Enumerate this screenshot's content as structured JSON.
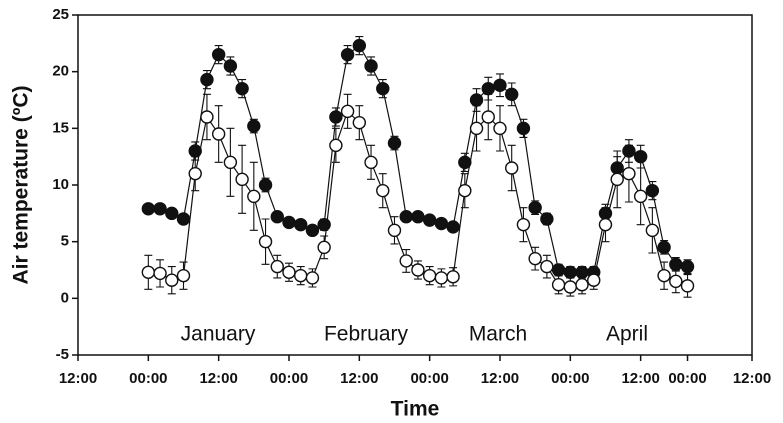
{
  "chart_data": {
    "type": "scatter",
    "y_label": "Air temperature (ºC)",
    "x_label": "Time",
    "annotations": [
      "January",
      "February",
      "March",
      "April"
    ],
    "xlim": [
      -12,
      103
    ],
    "ylim": [
      -5,
      25
    ],
    "xticks": [
      {
        "value": -12,
        "label": "12:00"
      },
      {
        "value": 0,
        "label": "00:00"
      },
      {
        "value": 12,
        "label": "12:00"
      },
      {
        "value": 24,
        "label": "00:00"
      },
      {
        "value": 36,
        "label": "12:00"
      },
      {
        "value": 48,
        "label": "00:00"
      },
      {
        "value": 60,
        "label": "12:00"
      },
      {
        "value": 72,
        "label": "00:00"
      },
      {
        "value": 84,
        "label": "12:00"
      },
      {
        "value": 92,
        "label": "00:00"
      },
      {
        "value": 103,
        "label": "12:00"
      }
    ],
    "yticks": [
      -5,
      0,
      5,
      10,
      15,
      20,
      25
    ],
    "x": [
      0,
      2,
      4,
      6,
      8,
      10,
      12,
      14,
      16,
      18,
      20,
      22,
      24,
      26,
      28,
      30,
      32,
      34,
      36,
      38,
      40,
      42,
      44,
      46,
      48,
      50,
      52,
      54,
      56,
      58,
      60,
      62,
      64,
      66,
      68,
      70,
      72,
      74,
      76,
      78,
      80,
      82,
      84,
      86,
      88,
      90,
      92
    ],
    "series": [
      {
        "color": "#111111",
        "filled": true,
        "values": [
          7.9,
          7.9,
          7.5,
          7.0,
          13,
          19.3,
          21.5,
          20.5,
          18.5,
          15.2,
          10,
          7.2,
          6.7,
          6.5,
          6.0,
          6.5,
          16,
          21.5,
          22.3,
          20.5,
          18.5,
          13.7,
          7.2,
          7.2,
          6.9,
          6.6,
          6.3,
          12,
          17.5,
          18.5,
          18.8,
          18,
          15,
          8,
          7,
          2.5,
          2.3,
          2.3,
          2.3,
          7.5,
          11.5,
          13,
          12.5,
          9.5,
          4.5,
          3,
          2.8
        ],
        "errors": [
          0.4,
          0.4,
          0.4,
          0.4,
          0.8,
          0.8,
          0.8,
          0.8,
          0.8,
          0.6,
          0.6,
          0.4,
          0.4,
          0.4,
          0.4,
          0.5,
          0.8,
          0.8,
          0.8,
          0.8,
          0.8,
          0.6,
          0.4,
          0.4,
          0.4,
          0.4,
          0.4,
          0.8,
          1.0,
          1.0,
          1.0,
          1.0,
          0.8,
          0.6,
          0.5,
          0.5,
          0.5,
          0.5,
          0.5,
          0.8,
          1.0,
          1.0,
          1.0,
          0.8,
          0.6,
          0.6,
          0.6
        ]
      },
      {
        "color": "#111111",
        "filled": false,
        "values": [
          2.3,
          2.2,
          1.6,
          2.0,
          11,
          16,
          14.5,
          12,
          10.5,
          9,
          5,
          2.8,
          2.3,
          2.0,
          1.8,
          4.5,
          13.5,
          16.5,
          15.5,
          12,
          9.5,
          6,
          3.3,
          2.5,
          2.0,
          1.8,
          1.9,
          9.5,
          15,
          16,
          15,
          11.5,
          6.5,
          3.5,
          2.8,
          1.2,
          1.0,
          1.2,
          1.6,
          6.5,
          10.5,
          11,
          9,
          6,
          2,
          1.5,
          1.1
        ],
        "errors": [
          1.5,
          1.2,
          1.2,
          1.2,
          1.5,
          2.0,
          2.5,
          3.0,
          3.0,
          3.0,
          2.0,
          1.0,
          0.8,
          0.8,
          0.8,
          1.0,
          1.5,
          1.5,
          1.5,
          1.5,
          1.5,
          1.2,
          1.0,
          0.8,
          0.8,
          0.8,
          0.8,
          1.5,
          2.0,
          2.0,
          2.0,
          2.0,
          1.5,
          1.0,
          1.0,
          0.8,
          0.8,
          0.8,
          0.8,
          1.5,
          2.5,
          2.5,
          2.5,
          2.0,
          1.2,
          1.0,
          1.0
        ]
      }
    ]
  }
}
